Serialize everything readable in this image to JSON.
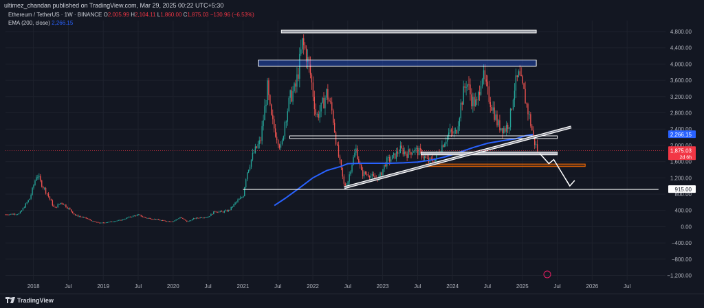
{
  "header": {
    "published": "ultimez_chandan published on TradingView.com, Mar 29, 2025 00:22 UTC+5:30",
    "symbol": "Ethereum / TetherUS · 1W · BINANCE",
    "o_label": "O",
    "o_value": "2,005.99",
    "h_label": "H",
    "h_value": "2,104.11",
    "l_label": "L",
    "l_value": "1,860.00",
    "c_label": "C",
    "c_value": "1,875.03",
    "change": "−130.96 (−6.53%)",
    "ema_label": "EMA (200, close)",
    "ema_value": "2,266.15"
  },
  "footer": {
    "brand": "TradingView"
  },
  "colors": {
    "background": "#131722",
    "up": "#26a69a",
    "down": "#ef5350",
    "ema": "#2962ff",
    "grid": "#1e222d",
    "text": "#b2b5be",
    "price_tag": "#f23645",
    "ema_tag": "#2962ff"
  },
  "chart_data": {
    "type": "candlestick",
    "symbol": "ETHUSDT",
    "interval": "1W",
    "y_ticks": [
      "4,800.00",
      "4,400.00",
      "4,000.00",
      "3,600.00",
      "3,200.00",
      "2,800.00",
      "2,400.00",
      "2,000.00",
      "1,600.00",
      "1,200.00",
      "800.00",
      "400.00",
      "0.00",
      "−400.00",
      "−800.00",
      "−1,200.00"
    ],
    "y_tick_values": [
      4800,
      4400,
      4000,
      3600,
      3200,
      2800,
      2400,
      2000,
      1600,
      1200,
      800,
      400,
      0,
      -400,
      -800,
      -1200
    ],
    "x_ticks": [
      "2018",
      "Jul",
      "2019",
      "Jul",
      "2020",
      "Jul",
      "2021",
      "Jul",
      "2022",
      "Jul",
      "2023",
      "Jul",
      "2024",
      "Jul",
      "2025",
      "Jul",
      "2026",
      "Jul"
    ],
    "x_tick_values": [
      2018.0,
      2018.5,
      2019.0,
      2019.5,
      2020.0,
      2020.5,
      2021.0,
      2021.5,
      2022.0,
      2022.5,
      2023.0,
      2023.5,
      2024.0,
      2024.5,
      2025.0,
      2025.5,
      2026.0,
      2026.5
    ],
    "close_path": [
      [
        2017.6,
        300
      ],
      [
        2017.8,
        320
      ],
      [
        2017.95,
        700
      ],
      [
        2018.05,
        1300
      ],
      [
        2018.1,
        1100
      ],
      [
        2018.2,
        800
      ],
      [
        2018.3,
        450
      ],
      [
        2018.4,
        600
      ],
      [
        2018.5,
        450
      ],
      [
        2018.6,
        280
      ],
      [
        2018.75,
        210
      ],
      [
        2018.85,
        130
      ],
      [
        2018.95,
        90
      ],
      [
        2019.1,
        120
      ],
      [
        2019.25,
        160
      ],
      [
        2019.4,
        250
      ],
      [
        2019.5,
        290
      ],
      [
        2019.6,
        220
      ],
      [
        2019.75,
        180
      ],
      [
        2019.9,
        135
      ],
      [
        2020.0,
        130
      ],
      [
        2020.1,
        230
      ],
      [
        2020.2,
        120
      ],
      [
        2020.3,
        200
      ],
      [
        2020.4,
        230
      ],
      [
        2020.5,
        240
      ],
      [
        2020.6,
        380
      ],
      [
        2020.7,
        360
      ],
      [
        2020.8,
        400
      ],
      [
        2020.9,
        600
      ],
      [
        2021.0,
        740
      ],
      [
        2021.05,
        1300
      ],
      [
        2021.15,
        1800
      ],
      [
        2021.25,
        2100
      ],
      [
        2021.35,
        3400
      ],
      [
        2021.4,
        2700
      ],
      [
        2021.45,
        2400
      ],
      [
        2021.55,
        1900
      ],
      [
        2021.6,
        2600
      ],
      [
        2021.68,
        3200
      ],
      [
        2021.75,
        3400
      ],
      [
        2021.8,
        3900
      ],
      [
        2021.85,
        4500
      ],
      [
        2021.9,
        4300
      ],
      [
        2021.97,
        3700
      ],
      [
        2022.05,
        2700
      ],
      [
        2022.12,
        2900
      ],
      [
        2022.2,
        3300
      ],
      [
        2022.28,
        2800
      ],
      [
        2022.35,
        1900
      ],
      [
        2022.45,
        1000
      ],
      [
        2022.5,
        1100
      ],
      [
        2022.55,
        1500
      ],
      [
        2022.62,
        1900
      ],
      [
        2022.7,
        1300
      ],
      [
        2022.8,
        1300
      ],
      [
        2022.87,
        1200
      ],
      [
        2022.95,
        1200
      ],
      [
        2023.05,
        1600
      ],
      [
        2023.15,
        1700
      ],
      [
        2023.25,
        1900
      ],
      [
        2023.35,
        1800
      ],
      [
        2023.45,
        1900
      ],
      [
        2023.55,
        1800
      ],
      [
        2023.65,
        1600
      ],
      [
        2023.75,
        1650
      ],
      [
        2023.85,
        2000
      ],
      [
        2023.95,
        2300
      ],
      [
        2024.05,
        2300
      ],
      [
        2024.12,
        3000
      ],
      [
        2024.2,
        3600
      ],
      [
        2024.28,
        3100
      ],
      [
        2024.35,
        3000
      ],
      [
        2024.42,
        3800
      ],
      [
        2024.5,
        3300
      ],
      [
        2024.58,
        2900
      ],
      [
        2024.65,
        2500
      ],
      [
        2024.75,
        2400
      ],
      [
        2024.82,
        2600
      ],
      [
        2024.88,
        3400
      ],
      [
        2024.95,
        3700
      ],
      [
        2025.02,
        3300
      ],
      [
        2025.1,
        2700
      ],
      [
        2025.17,
        2100
      ],
      [
        2025.22,
        1875
      ]
    ],
    "ema_200": [
      [
        2021.45,
        520
      ],
      [
        2021.6,
        690
      ],
      [
        2021.8,
        940
      ],
      [
        2022.0,
        1200
      ],
      [
        2022.2,
        1380
      ],
      [
        2022.4,
        1480
      ],
      [
        2022.5,
        1550
      ],
      [
        2022.7,
        1560
      ],
      [
        2022.9,
        1560
      ],
      [
        2023.1,
        1560
      ],
      [
        2023.3,
        1570
      ],
      [
        2023.5,
        1590
      ],
      [
        2023.7,
        1640
      ],
      [
        2023.9,
        1720
      ],
      [
        2024.1,
        1830
      ],
      [
        2024.3,
        1950
      ],
      [
        2024.5,
        2050
      ],
      [
        2024.7,
        2110
      ],
      [
        2024.9,
        2160
      ],
      [
        2025.05,
        2240
      ],
      [
        2025.15,
        2266.15
      ]
    ],
    "annotations": {
      "resistance_top": {
        "x1": 2021.55,
        "x2": 2025.2,
        "y": 4800
      },
      "resistance_band": {
        "x1": 2021.22,
        "x2": 2025.2,
        "y1": 3950,
        "y2": 4100
      },
      "mid_zone": {
        "x1": 2021.67,
        "x2": 2025.5,
        "y": 2200
      },
      "support_zone": {
        "x1": 2023.55,
        "x2": 2025.5,
        "y": 1800
      },
      "orange_zone": {
        "x1": 2023.62,
        "x2": 2025.9,
        "y1": 1480,
        "y2": 1540
      },
      "bottom_line": {
        "x1": 2021.0,
        "x2": 2026.95,
        "y": 915
      },
      "trendline": {
        "x1": 2022.45,
        "y1": 960,
        "x2": 2025.7,
        "y2": 2450
      },
      "arrow_path": [
        [
          2025.25,
          1800
        ],
        [
          2025.38,
          1550
        ],
        [
          2025.45,
          1650
        ],
        [
          2025.68,
          1000
        ]
      ]
    },
    "price_tags": {
      "ema": "2,266.15",
      "last": "1,875.03",
      "countdown": "2d 6h",
      "level": "915.00"
    }
  }
}
